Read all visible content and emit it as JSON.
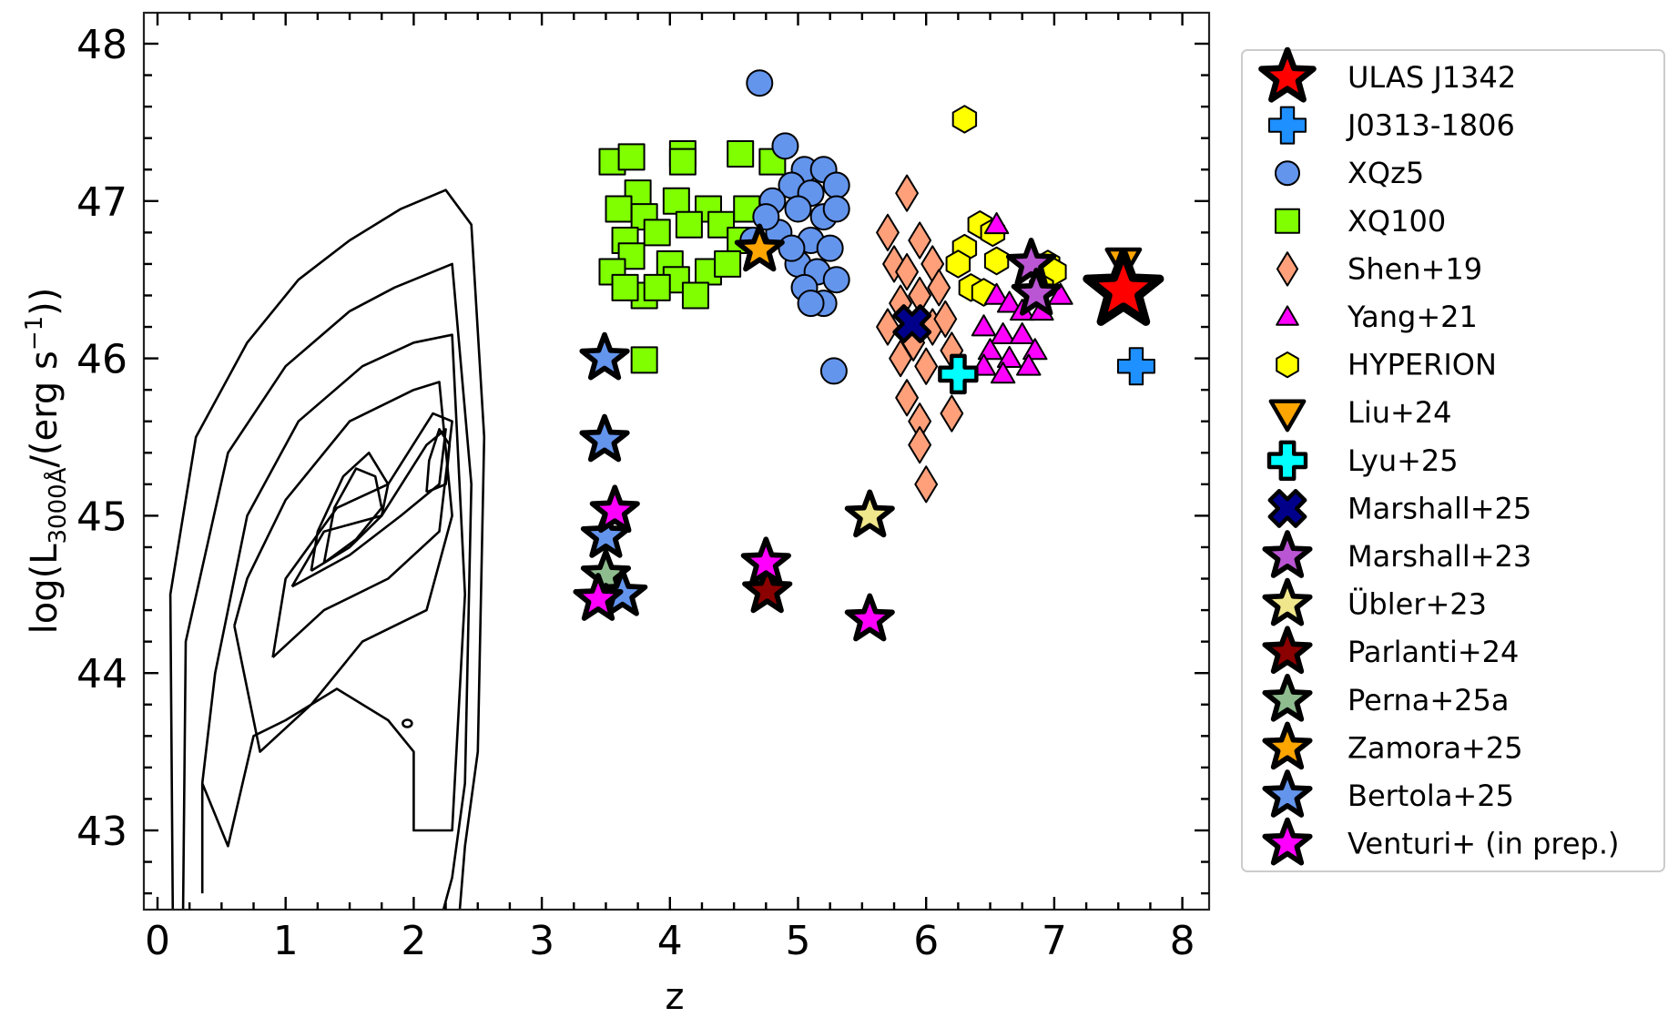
{
  "chart_data": {
    "type": "scatter",
    "title": "",
    "xlabel": "z",
    "ylabel": "log(L_3000Å/(erg s^-1))",
    "ylabel_parts": {
      "prefix": "log(L",
      "sub": "3000Å",
      "mid": "/(erg s",
      "sup": "−1",
      "suffix": "))"
    },
    "xlim": [
      -0.1,
      8.2
    ],
    "ylim": [
      42.5,
      48.2
    ],
    "xticks": [
      0,
      1,
      2,
      3,
      4,
      5,
      6,
      7,
      8
    ],
    "yticks": [
      43,
      44,
      45,
      46,
      47,
      48
    ],
    "grid": false,
    "legend_position": "outside right",
    "background_contours": {
      "description": "density contours of low-z quasar population",
      "levels": 8,
      "peak": {
        "z": 1.5,
        "logL": 45.0
      },
      "secondary_peak": {
        "z": 2.2,
        "logL": 45.4
      },
      "z_range": [
        0.05,
        2.75
      ],
      "logL_range": [
        42.5,
        47.1
      ]
    },
    "series": [
      {
        "name": "ULAS J1342",
        "marker": "star",
        "size": "xl",
        "color": "#ff0000",
        "edge": "#000000",
        "points": [
          [
            7.54,
            46.43
          ]
        ]
      },
      {
        "name": "J0313-1806",
        "marker": "plus",
        "size": "m",
        "color": "#1e90ff",
        "edge": "#000000",
        "points": [
          [
            7.64,
            45.95
          ]
        ]
      },
      {
        "name": "XQz5",
        "marker": "circle",
        "size": "s",
        "color": "#6495ed",
        "edge": "#000000",
        "points": [
          [
            4.7,
            47.75
          ],
          [
            4.9,
            47.35
          ],
          [
            5.05,
            47.2
          ],
          [
            5.2,
            47.2
          ],
          [
            4.95,
            47.1
          ],
          [
            5.1,
            47.05
          ],
          [
            5.3,
            47.1
          ],
          [
            4.8,
            47.0
          ],
          [
            5.0,
            46.95
          ],
          [
            5.2,
            46.9
          ],
          [
            5.3,
            46.95
          ],
          [
            4.85,
            46.8
          ],
          [
            5.1,
            46.75
          ],
          [
            5.25,
            46.7
          ],
          [
            5.0,
            46.6
          ],
          [
            5.15,
            46.55
          ],
          [
            5.3,
            46.5
          ],
          [
            5.05,
            46.45
          ],
          [
            5.2,
            46.35
          ],
          [
            5.1,
            46.35
          ],
          [
            4.65,
            46.75
          ],
          [
            4.75,
            46.9
          ],
          [
            4.95,
            46.7
          ],
          [
            5.28,
            45.92
          ]
        ]
      },
      {
        "name": "XQ100",
        "marker": "square",
        "size": "s",
        "color": "#7fff00",
        "edge": "#000000",
        "points": [
          [
            3.55,
            47.25
          ],
          [
            3.7,
            47.28
          ],
          [
            4.1,
            47.3
          ],
          [
            4.55,
            47.3
          ],
          [
            4.8,
            47.25
          ],
          [
            4.1,
            47.25
          ],
          [
            3.75,
            47.05
          ],
          [
            3.6,
            46.95
          ],
          [
            3.8,
            46.9
          ],
          [
            4.05,
            47.0
          ],
          [
            4.3,
            46.95
          ],
          [
            4.6,
            46.95
          ],
          [
            3.65,
            46.75
          ],
          [
            3.9,
            46.8
          ],
          [
            4.15,
            46.85
          ],
          [
            4.4,
            46.85
          ],
          [
            4.55,
            46.75
          ],
          [
            3.7,
            46.65
          ],
          [
            4.0,
            46.6
          ],
          [
            4.3,
            46.55
          ],
          [
            3.55,
            46.55
          ],
          [
            3.8,
            46.4
          ],
          [
            4.05,
            46.5
          ],
          [
            4.2,
            46.4
          ],
          [
            3.65,
            46.45
          ],
          [
            3.9,
            46.45
          ],
          [
            4.45,
            46.6
          ],
          [
            3.8,
            45.99
          ]
        ]
      },
      {
        "name": "Shen+19",
        "marker": "diamond",
        "size": "s",
        "color": "#ffa07a",
        "edge": "#000000",
        "points": [
          [
            5.85,
            47.05
          ],
          [
            5.7,
            46.8
          ],
          [
            5.95,
            46.75
          ],
          [
            5.75,
            46.6
          ],
          [
            5.85,
            46.55
          ],
          [
            6.05,
            46.6
          ],
          [
            5.8,
            46.35
          ],
          [
            5.95,
            46.4
          ],
          [
            6.1,
            46.45
          ],
          [
            5.7,
            46.2
          ],
          [
            5.9,
            46.1
          ],
          [
            6.05,
            46.2
          ],
          [
            6.15,
            46.25
          ],
          [
            5.8,
            46.0
          ],
          [
            6.0,
            45.95
          ],
          [
            6.2,
            46.05
          ],
          [
            5.85,
            45.75
          ],
          [
            5.95,
            45.6
          ],
          [
            6.2,
            45.65
          ],
          [
            5.95,
            45.45
          ],
          [
            6.0,
            45.2
          ]
        ]
      },
      {
        "name": "Yang+21",
        "marker": "triangle",
        "size": "s",
        "color": "#ff00ff",
        "edge": "#000000",
        "points": [
          [
            6.55,
            46.85
          ],
          [
            6.55,
            46.4
          ],
          [
            6.65,
            46.35
          ],
          [
            6.75,
            46.3
          ],
          [
            6.45,
            46.2
          ],
          [
            6.6,
            46.15
          ],
          [
            6.75,
            46.15
          ],
          [
            6.85,
            46.05
          ],
          [
            6.5,
            46.05
          ],
          [
            6.65,
            46.0
          ],
          [
            6.8,
            45.95
          ],
          [
            6.45,
            45.95
          ],
          [
            6.6,
            45.9
          ],
          [
            6.9,
            46.3
          ],
          [
            7.05,
            46.4
          ]
        ]
      },
      {
        "name": "HYPERION",
        "marker": "hexagon",
        "size": "s",
        "color": "#ffff00",
        "edge": "#000000",
        "points": [
          [
            6.3,
            47.52
          ],
          [
            6.42,
            46.85
          ],
          [
            6.52,
            46.8
          ],
          [
            6.3,
            46.7
          ],
          [
            6.25,
            46.6
          ],
          [
            6.55,
            46.62
          ],
          [
            6.35,
            46.45
          ],
          [
            6.45,
            46.42
          ],
          [
            6.95,
            46.6
          ],
          [
            7.0,
            46.55
          ],
          [
            6.9,
            46.45
          ]
        ]
      },
      {
        "name": "Liu+24",
        "marker": "triangle-down",
        "size": "m",
        "color": "#ffa500",
        "edge": "#000000",
        "points": [
          [
            7.54,
            46.62
          ]
        ]
      },
      {
        "name": "Lyu+25",
        "marker": "plus",
        "size": "m",
        "color": "#00ffff",
        "edge": "#000000",
        "points": [
          [
            6.25,
            45.9
          ]
        ]
      },
      {
        "name": "Marshall+25",
        "marker": "x",
        "size": "m",
        "color": "#00008b",
        "edge": "#000000",
        "points": [
          [
            5.89,
            46.22
          ]
        ]
      },
      {
        "name": "Marshall+23",
        "marker": "star",
        "size": "l",
        "color": "#ba55d3",
        "edge": "#000000",
        "points": [
          [
            6.82,
            46.6
          ],
          [
            6.86,
            46.41
          ]
        ]
      },
      {
        "name": "Übler+23",
        "marker": "star",
        "size": "l",
        "color": "#f0e68c",
        "edge": "#000000",
        "points": [
          [
            5.56,
            45.0
          ]
        ]
      },
      {
        "name": "Parlanti+24",
        "marker": "star",
        "size": "l",
        "color": "#8b0000",
        "edge": "#000000",
        "points": [
          [
            4.76,
            44.52
          ]
        ]
      },
      {
        "name": "Perna+25a",
        "marker": "star",
        "size": "l",
        "color": "#8fbc8f",
        "edge": "#000000",
        "points": [
          [
            3.5,
            44.62
          ]
        ]
      },
      {
        "name": "Zamora+25",
        "marker": "star",
        "size": "l",
        "color": "#ffa500",
        "edge": "#000000",
        "points": [
          [
            4.7,
            46.69
          ]
        ]
      },
      {
        "name": "Bertola+25",
        "marker": "star",
        "size": "l",
        "color": "#6495ed",
        "edge": "#000000",
        "points": [
          [
            3.49,
            46.0
          ],
          [
            3.49,
            45.48
          ],
          [
            3.5,
            44.87
          ],
          [
            3.63,
            44.5
          ]
        ]
      },
      {
        "name": "Venturi+ (in prep.)",
        "marker": "star",
        "size": "l",
        "color": "#ff00ff",
        "edge": "#000000",
        "points": [
          [
            3.57,
            45.03
          ],
          [
            3.44,
            44.47
          ],
          [
            4.75,
            44.7
          ],
          [
            5.56,
            44.34
          ]
        ]
      }
    ]
  },
  "legend": {
    "items": [
      {
        "label": "ULAS J1342"
      },
      {
        "label": "J0313-1806"
      },
      {
        "label": "XQz5"
      },
      {
        "label": "XQ100"
      },
      {
        "label": "Shen+19"
      },
      {
        "label": "Yang+21"
      },
      {
        "label": "HYPERION"
      },
      {
        "label": "Liu+24"
      },
      {
        "label": "Lyu+25"
      },
      {
        "label": "Marshall+25"
      },
      {
        "label": "Marshall+23"
      },
      {
        "label": "Übler+23"
      },
      {
        "label": "Parlanti+24"
      },
      {
        "label": "Perna+25a"
      },
      {
        "label": "Zamora+25"
      },
      {
        "label": "Bertola+25"
      },
      {
        "label": "Venturi+ (in prep.)"
      }
    ]
  }
}
